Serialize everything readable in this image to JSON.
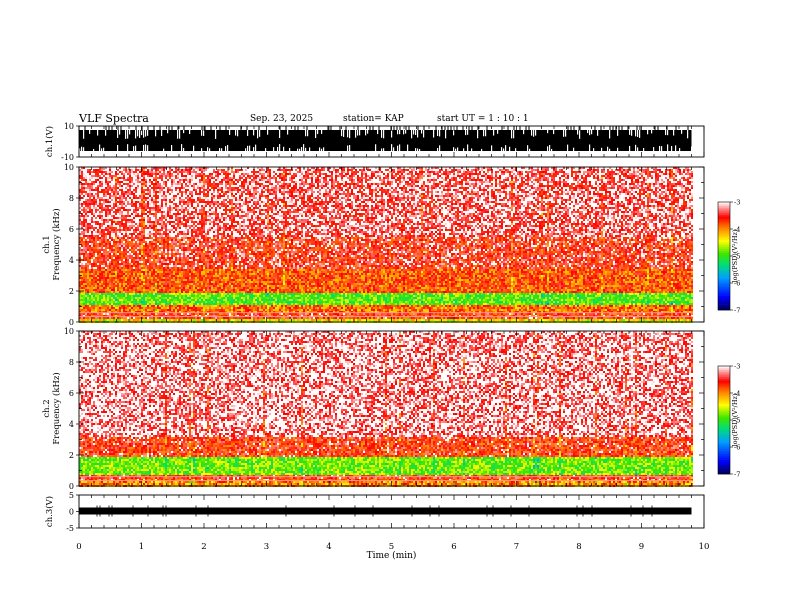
{
  "header": {
    "title": "VLF Spectra",
    "date": "Sep. 23, 2025",
    "station": "station= KAP",
    "start_ut": "start UT =   1 : 10 : 1"
  },
  "chart_data": {
    "type": "heatmap",
    "xlabel": "Time (min)",
    "xlim": [
      0,
      10
    ],
    "xticks": [
      "0",
      "1",
      "2",
      "3",
      "4",
      "5",
      "6",
      "7",
      "8",
      "9",
      "10"
    ],
    "panels": [
      {
        "name": "ch1-waveform",
        "kind": "waveform",
        "ylabel": "ch.1(V)",
        "ylim": [
          -10,
          10
        ],
        "yticks": [
          "10",
          "-10"
        ],
        "data_end_min": 9.8
      },
      {
        "name": "ch1-spectrogram",
        "kind": "spectrogram",
        "ylabel": "ch.1",
        "ylabel2": "Frequency (kHz)",
        "ylim": [
          0,
          10
        ],
        "yticks": [
          "0",
          "2",
          "4",
          "6",
          "8",
          "10"
        ],
        "colorbar": {
          "label": "log(PSD)(V²/Hz)",
          "range": [
            -7,
            -3
          ],
          "ticks": [
            "-3",
            "-4",
            "-5",
            "-6",
            "-7"
          ]
        },
        "bands": [
          {
            "f_low": 0.0,
            "f_high": 0.3,
            "level": -4.4
          },
          {
            "f_low": 0.3,
            "f_high": 0.7,
            "level": -3.6
          },
          {
            "f_low": 0.7,
            "f_high": 1.1,
            "level": -3.9
          },
          {
            "f_low": 1.1,
            "f_high": 1.9,
            "level": -4.9
          },
          {
            "f_low": 1.9,
            "f_high": 3.5,
            "level": -3.8
          },
          {
            "f_low": 3.5,
            "f_high": 5.5,
            "level": -3.5
          },
          {
            "f_low": 5.5,
            "f_high": 10.0,
            "level": -3.3
          }
        ]
      },
      {
        "name": "ch2-spectrogram",
        "kind": "spectrogram",
        "ylabel": "ch.2",
        "ylabel2": "Frequency (kHz)",
        "ylim": [
          0,
          10
        ],
        "yticks": [
          "0",
          "2",
          "4",
          "6",
          "8",
          "10"
        ],
        "colorbar": {
          "label": "log(PSD)(V²/Hz)",
          "range": [
            -7,
            -3
          ],
          "ticks": [
            "-3",
            "-4",
            "-5",
            "-6",
            "-7"
          ]
        },
        "bands": [
          {
            "f_low": 0.0,
            "f_high": 0.4,
            "level": -4.0
          },
          {
            "f_low": 0.4,
            "f_high": 0.8,
            "level": -3.6
          },
          {
            "f_low": 0.8,
            "f_high": 2.0,
            "level": -4.8
          },
          {
            "f_low": 2.0,
            "f_high": 3.2,
            "level": -3.6
          },
          {
            "f_low": 3.2,
            "f_high": 10.0,
            "level": -3.2
          }
        ]
      },
      {
        "name": "ch3-waveform",
        "kind": "waveform",
        "ylabel": "ch.3(V)",
        "ylim": [
          -5,
          5
        ],
        "yticks": [
          "5",
          "0",
          "-5"
        ],
        "data_end_min": 9.8
      }
    ]
  }
}
